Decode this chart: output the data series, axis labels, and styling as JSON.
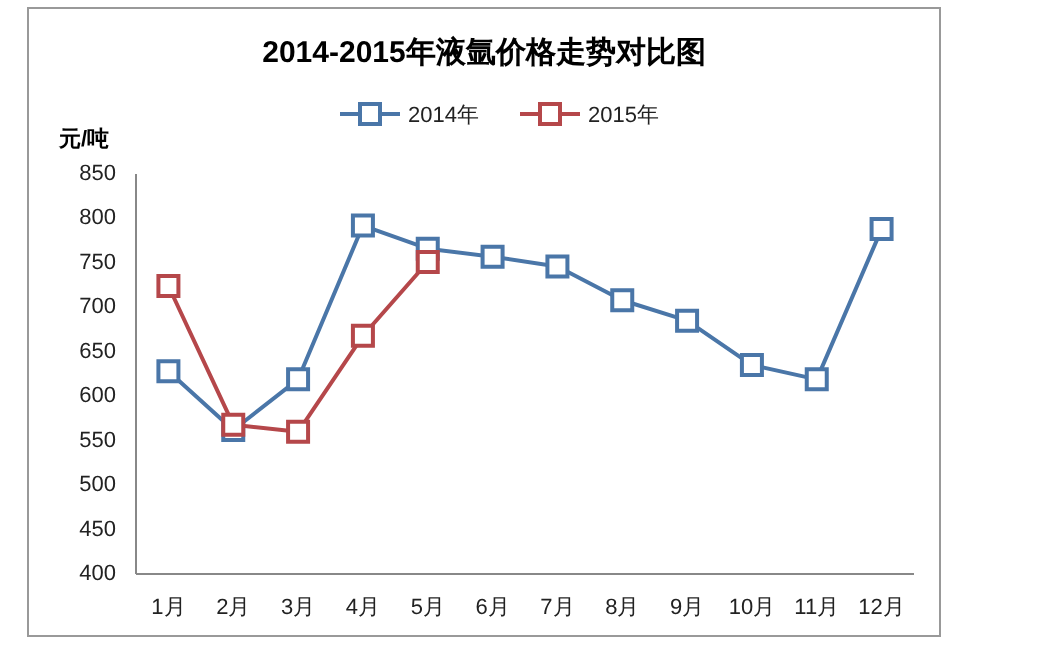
{
  "chart_data": {
    "type": "line",
    "title": "2014-2015年液氩价格走势对比图",
    "ylabel": "元/吨",
    "categories": [
      "1月",
      "2月",
      "3月",
      "4月",
      "5月",
      "6月",
      "7月",
      "8月",
      "9月",
      "10月",
      "11月",
      "12月"
    ],
    "series": [
      {
        "name": "2014年",
        "color": "#4a76a8",
        "values": [
          628,
          562,
          619,
          792,
          766,
          757,
          746,
          708,
          685,
          635,
          619,
          788
        ]
      },
      {
        "name": "2015年",
        "color": "#b5474a",
        "values": [
          724,
          568,
          560,
          668,
          751,
          null,
          null,
          null,
          null,
          null,
          null,
          null
        ]
      }
    ],
    "ylim": [
      400,
      850
    ],
    "yticks": [
      400,
      450,
      500,
      550,
      600,
      650,
      700,
      750,
      800,
      850
    ],
    "grid": false,
    "legend": "top",
    "marker": "square",
    "line_style": "solid"
  }
}
